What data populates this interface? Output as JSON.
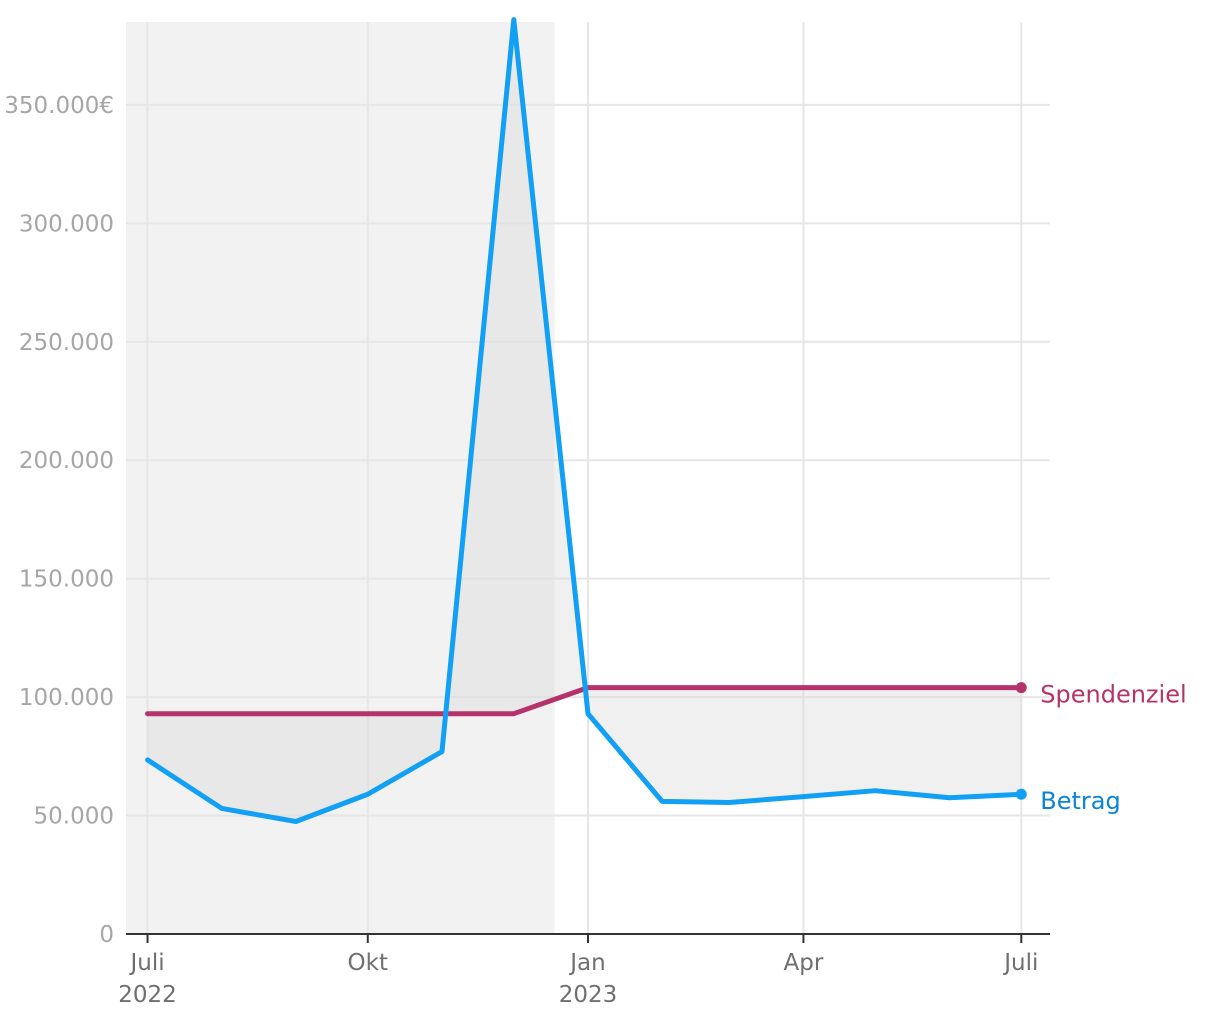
{
  "chart_data": {
    "type": "line",
    "x": [
      "2022-07",
      "2022-08",
      "2022-09",
      "2022-10",
      "2022-11",
      "2022-12",
      "2023-01",
      "2023-02",
      "2023-03",
      "2023-04",
      "2023-05",
      "2023-06",
      "2023-07"
    ],
    "series": [
      {
        "name": "Spendenziel",
        "color": "#b5336a",
        "values": [
          93000,
          93000,
          93000,
          93000,
          93000,
          93000,
          104000,
          104000,
          104000,
          104000,
          104000,
          104000,
          104000
        ]
      },
      {
        "name": "Betrag",
        "color": "#12a0f5",
        "label_color": "#0b84d8",
        "values": [
          73500,
          53000,
          47500,
          59000,
          77000,
          386000,
          93000,
          56000,
          55500,
          58000,
          60500,
          57500,
          59000
        ]
      }
    ],
    "ylim": [
      0,
      385000
    ],
    "yticks": [
      {
        "value": 0,
        "label": "0"
      },
      {
        "value": 50000,
        "label": "50.000"
      },
      {
        "value": 100000,
        "label": "100.000"
      },
      {
        "value": 150000,
        "label": "150.000"
      },
      {
        "value": 200000,
        "label": "200.000"
      },
      {
        "value": 250000,
        "label": "250.000"
      },
      {
        "value": 300000,
        "label": "300.000"
      },
      {
        "value": 350000,
        "label": "350.000€"
      }
    ],
    "xticks": [
      {
        "date": "2022-07",
        "label": "Juli",
        "sublabel": "2022"
      },
      {
        "date": "2022-10",
        "label": "Okt",
        "sublabel": ""
      },
      {
        "date": "2023-01",
        "label": "Jan",
        "sublabel": "2023"
      },
      {
        "date": "2023-04",
        "label": "Apr",
        "sublabel": ""
      },
      {
        "date": "2023-07",
        "label": "Juli",
        "sublabel": ""
      }
    ],
    "highlight_period": {
      "start": "2022-06-22",
      "end": "2022-12-18"
    },
    "grid": true,
    "colors": {
      "grid": "#e6e6e6",
      "axis": "#333333",
      "highlight_band": "#f2f2f2",
      "difference_fill": "#d9d9d9"
    }
  }
}
